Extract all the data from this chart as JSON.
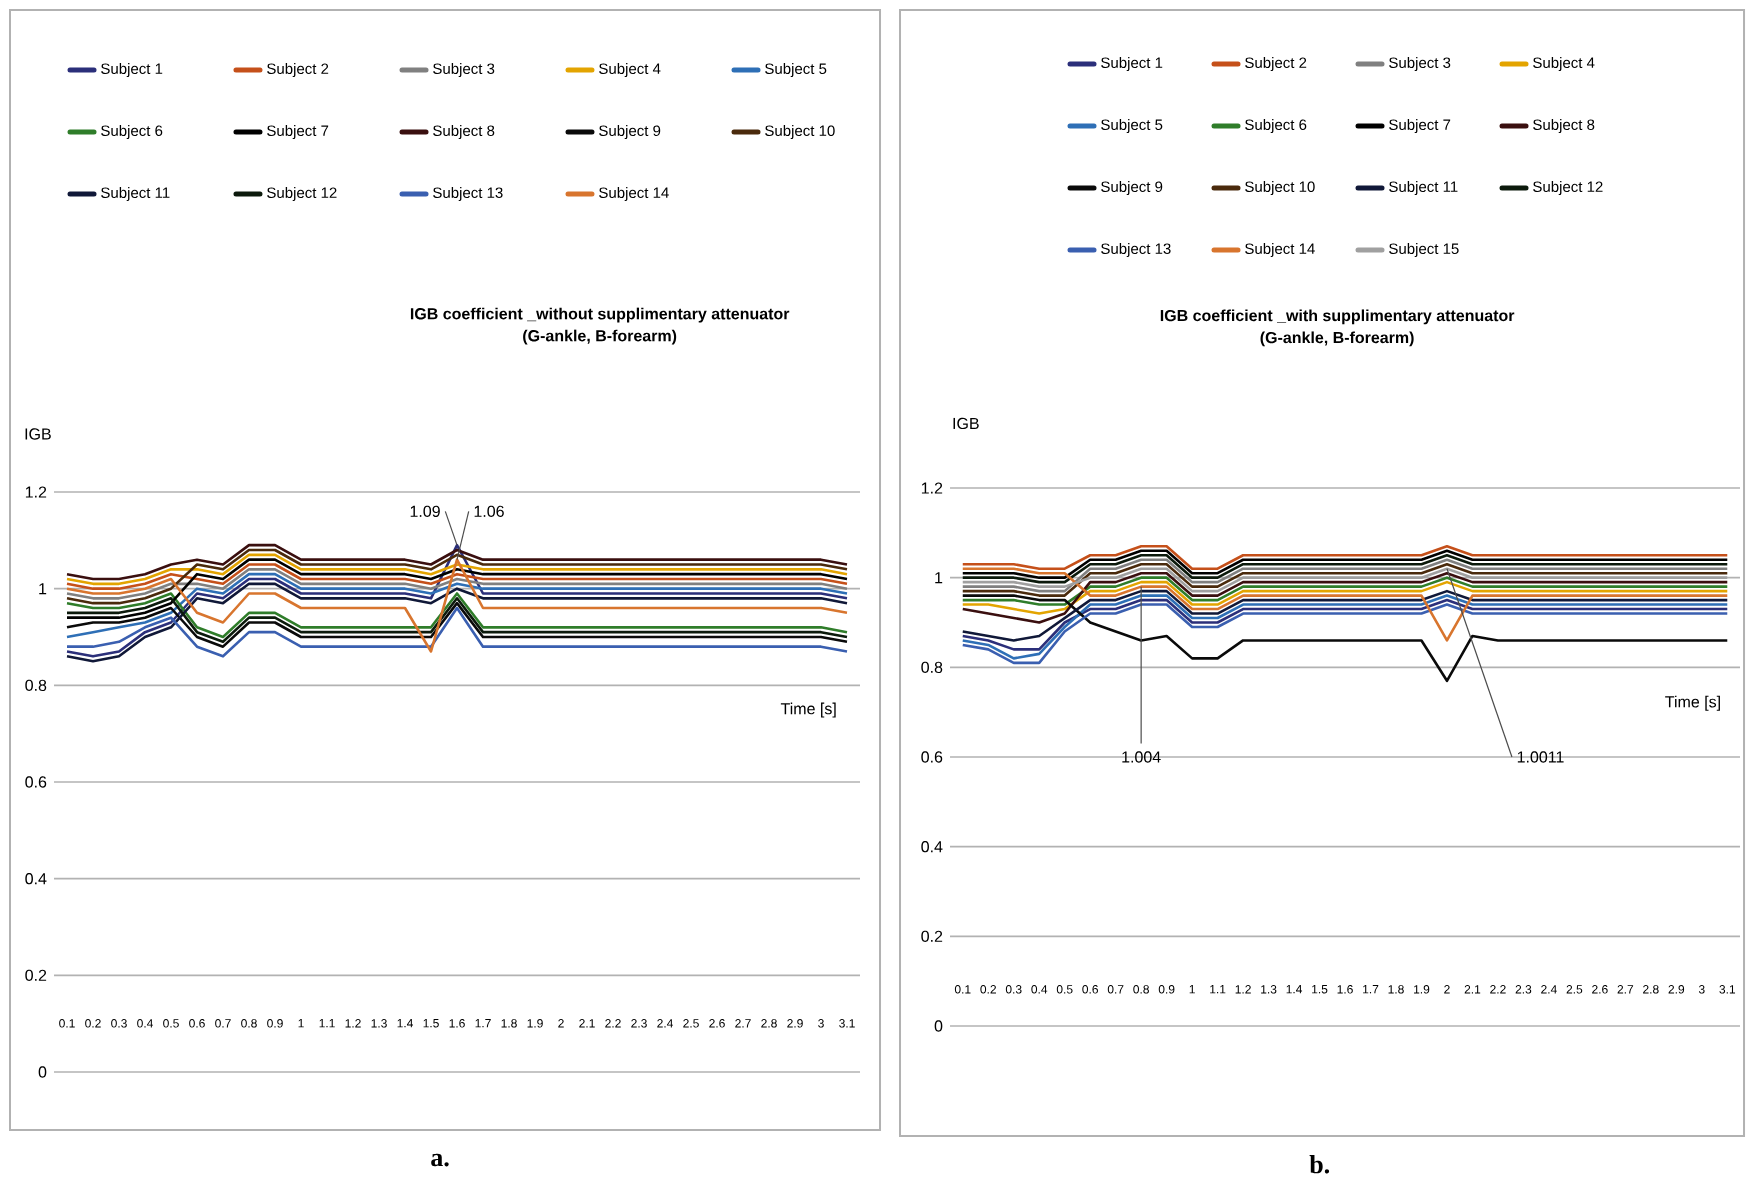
{
  "chart_data": [
    {
      "type": "line",
      "title": "IGB coefficient _without supplimentary attenuator",
      "subtitle": "(G-ankle, B-forearm)",
      "xlabel": "Time [s]",
      "ylabel": "IGB",
      "categories": [
        "0.1",
        "0.2",
        "0.3",
        "0.4",
        "0.5",
        "0.6",
        "0.7",
        "0.8",
        "0.9",
        "1",
        "1.1",
        "1.2",
        "1.3",
        "1.4",
        "1.5",
        "1.6",
        "1.7",
        "1.8",
        "1.9",
        "2",
        "2.1",
        "2.2",
        "2.3",
        "2.4",
        "2.5",
        "2.6",
        "2.7",
        "2.8",
        "2.9",
        "3",
        "3.1"
      ],
      "ylim": [
        0,
        1.2
      ],
      "yticks": [
        0,
        0.2,
        0.4,
        0.6,
        0.8,
        1,
        1.2
      ],
      "grid": "y",
      "legend": "top",
      "annotations": [
        {
          "text": "1.09",
          "x": "1.6",
          "y": 1.09
        },
        {
          "text": "1.06",
          "x": "1.6",
          "y": 1.06
        },
        "a."
      ],
      "series": [
        {
          "name": "Subject 1",
          "color": "#2b2f7a",
          "values": [
            0.87,
            0.86,
            0.87,
            0.91,
            0.93,
            0.99,
            0.98,
            1.02,
            1.02,
            0.99,
            0.99,
            0.99,
            0.99,
            0.99,
            0.98,
            1.09,
            0.99,
            0.99,
            0.99,
            0.99,
            0.99,
            0.99,
            0.99,
            0.99,
            0.99,
            0.99,
            0.99,
            0.99,
            0.99,
            0.99,
            0.98
          ]
        },
        {
          "name": "Subject 2",
          "color": "#c5501a",
          "values": [
            1.01,
            1.0,
            1.0,
            1.01,
            1.03,
            1.02,
            1.01,
            1.05,
            1.05,
            1.02,
            1.02,
            1.02,
            1.02,
            1.02,
            1.01,
            1.03,
            1.02,
            1.02,
            1.02,
            1.02,
            1.02,
            1.02,
            1.02,
            1.02,
            1.02,
            1.02,
            1.02,
            1.02,
            1.02,
            1.02,
            1.01
          ]
        },
        {
          "name": "Subject 3",
          "color": "#808080",
          "values": [
            0.99,
            0.98,
            0.98,
            0.99,
            1.01,
            1.01,
            1.0,
            1.04,
            1.04,
            1.01,
            1.01,
            1.01,
            1.01,
            1.01,
            1.0,
            1.02,
            1.01,
            1.01,
            1.01,
            1.01,
            1.01,
            1.01,
            1.01,
            1.01,
            1.01,
            1.01,
            1.01,
            1.01,
            1.01,
            1.01,
            1.0
          ]
        },
        {
          "name": "Subject 4",
          "color": "#e3a400",
          "values": [
            1.02,
            1.01,
            1.01,
            1.02,
            1.04,
            1.04,
            1.03,
            1.07,
            1.07,
            1.04,
            1.04,
            1.04,
            1.04,
            1.04,
            1.03,
            1.05,
            1.04,
            1.04,
            1.04,
            1.04,
            1.04,
            1.04,
            1.04,
            1.04,
            1.04,
            1.04,
            1.04,
            1.04,
            1.04,
            1.04,
            1.03
          ]
        },
        {
          "name": "Subject 5",
          "color": "#2e6fb6",
          "values": [
            0.9,
            0.91,
            0.92,
            0.93,
            0.95,
            1.0,
            0.99,
            1.03,
            1.03,
            1.0,
            1.0,
            1.0,
            1.0,
            1.0,
            0.99,
            1.01,
            1.0,
            1.0,
            1.0,
            1.0,
            1.0,
            1.0,
            1.0,
            1.0,
            1.0,
            1.0,
            1.0,
            1.0,
            1.0,
            1.0,
            0.99
          ]
        },
        {
          "name": "Subject 6",
          "color": "#2f7d2a",
          "values": [
            0.97,
            0.96,
            0.96,
            0.97,
            0.99,
            0.92,
            0.9,
            0.95,
            0.95,
            0.92,
            0.92,
            0.92,
            0.92,
            0.92,
            0.92,
            0.99,
            0.92,
            0.92,
            0.92,
            0.92,
            0.92,
            0.92,
            0.92,
            0.92,
            0.92,
            0.92,
            0.92,
            0.92,
            0.92,
            0.92,
            0.91
          ]
        },
        {
          "name": "Subject 7",
          "color": "#000000",
          "values": [
            0.94,
            0.94,
            0.94,
            0.95,
            0.97,
            1.03,
            1.02,
            1.06,
            1.06,
            1.03,
            1.03,
            1.03,
            1.03,
            1.03,
            1.02,
            1.04,
            1.03,
            1.03,
            1.03,
            1.03,
            1.03,
            1.03,
            1.03,
            1.03,
            1.03,
            1.03,
            1.03,
            1.03,
            1.03,
            1.03,
            1.02
          ]
        },
        {
          "name": "Subject 8",
          "color": "#3a0f0f",
          "values": [
            1.03,
            1.02,
            1.02,
            1.03,
            1.05,
            1.06,
            1.05,
            1.09,
            1.09,
            1.06,
            1.06,
            1.06,
            1.06,
            1.06,
            1.05,
            1.08,
            1.06,
            1.06,
            1.06,
            1.06,
            1.06,
            1.06,
            1.06,
            1.06,
            1.06,
            1.06,
            1.06,
            1.06,
            1.06,
            1.06,
            1.05
          ]
        },
        {
          "name": "Subject 9",
          "color": "#0a0a0a",
          "values": [
            0.92,
            0.93,
            0.93,
            0.94,
            0.96,
            0.9,
            0.88,
            0.93,
            0.93,
            0.9,
            0.9,
            0.9,
            0.9,
            0.9,
            0.9,
            0.97,
            0.9,
            0.9,
            0.9,
            0.9,
            0.9,
            0.9,
            0.9,
            0.9,
            0.9,
            0.9,
            0.9,
            0.9,
            0.9,
            0.9,
            0.89
          ]
        },
        {
          "name": "Subject 10",
          "color": "#4a2a0c",
          "values": [
            0.98,
            0.97,
            0.97,
            0.98,
            1.0,
            1.05,
            1.04,
            1.08,
            1.08,
            1.05,
            1.05,
            1.05,
            1.05,
            1.05,
            1.04,
            1.07,
            1.05,
            1.05,
            1.05,
            1.05,
            1.05,
            1.05,
            1.05,
            1.05,
            1.05,
            1.05,
            1.05,
            1.05,
            1.05,
            1.05,
            1.04
          ]
        },
        {
          "name": "Subject 11",
          "color": "#101838",
          "values": [
            0.86,
            0.85,
            0.86,
            0.9,
            0.92,
            0.98,
            0.97,
            1.01,
            1.01,
            0.98,
            0.98,
            0.98,
            0.98,
            0.98,
            0.97,
            1.0,
            0.98,
            0.98,
            0.98,
            0.98,
            0.98,
            0.98,
            0.98,
            0.98,
            0.98,
            0.98,
            0.98,
            0.98,
            0.98,
            0.98,
            0.97
          ]
        },
        {
          "name": "Subject 12",
          "color": "#0c1a0c",
          "values": [
            0.95,
            0.95,
            0.95,
            0.96,
            0.98,
            0.91,
            0.89,
            0.94,
            0.94,
            0.91,
            0.91,
            0.91,
            0.91,
            0.91,
            0.91,
            0.98,
            0.91,
            0.91,
            0.91,
            0.91,
            0.91,
            0.91,
            0.91,
            0.91,
            0.91,
            0.91,
            0.91,
            0.91,
            0.91,
            0.91,
            0.9
          ]
        },
        {
          "name": "Subject 13",
          "color": "#3a5fb0",
          "values": [
            0.88,
            0.88,
            0.89,
            0.92,
            0.94,
            0.88,
            0.86,
            0.91,
            0.91,
            0.88,
            0.88,
            0.88,
            0.88,
            0.88,
            0.88,
            0.96,
            0.88,
            0.88,
            0.88,
            0.88,
            0.88,
            0.88,
            0.88,
            0.88,
            0.88,
            0.88,
            0.88,
            0.88,
            0.88,
            0.88,
            0.87
          ]
        },
        {
          "name": "Subject 14",
          "color": "#d8752e",
          "values": [
            1.0,
            0.99,
            0.99,
            1.0,
            1.02,
            0.95,
            0.93,
            0.99,
            0.99,
            0.96,
            0.96,
            0.96,
            0.96,
            0.96,
            0.87,
            1.06,
            0.96,
            0.96,
            0.96,
            0.96,
            0.96,
            0.96,
            0.96,
            0.96,
            0.96,
            0.96,
            0.96,
            0.96,
            0.96,
            0.96,
            0.95
          ]
        }
      ]
    },
    {
      "type": "line",
      "title": "IGB coefficient _with supplimentary attenuator",
      "subtitle": "(G-ankle, B-forearm)",
      "xlabel": "Time [s]",
      "ylabel": "IGB",
      "categories": [
        "0.1",
        "0.2",
        "0.3",
        "0.4",
        "0.5",
        "0.6",
        "0.7",
        "0.8",
        "0.9",
        "1",
        "1.1",
        "1.2",
        "1.3",
        "1.4",
        "1.5",
        "1.6",
        "1.7",
        "1.8",
        "1.9",
        "2",
        "2.1",
        "2.2",
        "2.3",
        "2.4",
        "2.5",
        "2.6",
        "2.7",
        "2.8",
        "2.9",
        "3",
        "3.1"
      ],
      "ylim": [
        0,
        1.2
      ],
      "yticks": [
        0,
        0.2,
        0.4,
        0.6,
        0.8,
        1,
        1.2
      ],
      "grid": "y",
      "legend": "top",
      "annotations": [
        {
          "text": "1.004",
          "x": "0.8",
          "y": 0.98
        },
        {
          "text": "1.0011",
          "x": "2",
          "y": 1.02
        },
        "b."
      ],
      "series": [
        {
          "name": "Subject 1",
          "color": "#2b2f7a",
          "values": [
            0.87,
            0.86,
            0.84,
            0.84,
            0.9,
            0.93,
            0.93,
            0.95,
            0.95,
            0.9,
            0.9,
            0.93,
            0.93,
            0.93,
            0.93,
            0.93,
            0.93,
            0.93,
            0.93,
            0.95,
            0.93,
            0.93,
            0.93,
            0.93,
            0.93,
            0.93,
            0.93,
            0.93,
            0.93,
            0.93,
            0.93
          ]
        },
        {
          "name": "Subject 2",
          "color": "#c5501a",
          "values": [
            1.03,
            1.03,
            1.03,
            1.02,
            1.02,
            1.05,
            1.05,
            1.07,
            1.07,
            1.02,
            1.02,
            1.05,
            1.05,
            1.05,
            1.05,
            1.05,
            1.05,
            1.05,
            1.05,
            1.07,
            1.05,
            1.05,
            1.05,
            1.05,
            1.05,
            1.05,
            1.05,
            1.05,
            1.05,
            1.05,
            1.05
          ]
        },
        {
          "name": "Subject 3",
          "color": "#808080",
          "values": [
            0.98,
            0.98,
            0.98,
            0.97,
            0.97,
            1.02,
            1.02,
            1.04,
            1.04,
            0.99,
            0.99,
            1.02,
            1.02,
            1.02,
            1.02,
            1.02,
            1.02,
            1.02,
            1.02,
            1.04,
            1.02,
            1.02,
            1.02,
            1.02,
            1.02,
            1.02,
            1.02,
            1.02,
            1.02,
            1.02,
            1.02
          ]
        },
        {
          "name": "Subject 4",
          "color": "#e3a400",
          "values": [
            0.94,
            0.94,
            0.93,
            0.92,
            0.93,
            0.97,
            0.97,
            0.99,
            0.99,
            0.94,
            0.94,
            0.97,
            0.97,
            0.97,
            0.97,
            0.97,
            0.97,
            0.97,
            0.97,
            0.99,
            0.97,
            0.97,
            0.97,
            0.97,
            0.97,
            0.97,
            0.97,
            0.97,
            0.97,
            0.97,
            0.97
          ]
        },
        {
          "name": "Subject 5",
          "color": "#2e6fb6",
          "values": [
            0.86,
            0.85,
            0.82,
            0.83,
            0.89,
            0.94,
            0.94,
            0.96,
            0.96,
            0.91,
            0.91,
            0.94,
            0.94,
            0.94,
            0.94,
            0.94,
            0.94,
            0.94,
            0.94,
            0.96,
            0.94,
            0.94,
            0.94,
            0.94,
            0.94,
            0.94,
            0.94,
            0.94,
            0.94,
            0.94,
            0.94
          ]
        },
        {
          "name": "Subject 6",
          "color": "#2f7d2a",
          "values": [
            0.95,
            0.95,
            0.95,
            0.94,
            0.94,
            0.98,
            0.98,
            1.0,
            1.0,
            0.95,
            0.95,
            0.98,
            0.98,
            0.98,
            0.98,
            0.98,
            0.98,
            0.98,
            0.98,
            1.0,
            0.98,
            0.98,
            0.98,
            0.98,
            0.98,
            0.98,
            0.98,
            0.98,
            0.98,
            0.98,
            0.98
          ]
        },
        {
          "name": "Subject 7",
          "color": "#000000",
          "values": [
            1.01,
            1.01,
            1.01,
            1.0,
            1.0,
            1.04,
            1.04,
            1.06,
            1.06,
            1.01,
            1.01,
            1.04,
            1.04,
            1.04,
            1.04,
            1.04,
            1.04,
            1.04,
            1.04,
            1.06,
            1.04,
            1.04,
            1.04,
            1.04,
            1.04,
            1.04,
            1.04,
            1.04,
            1.04,
            1.04,
            1.04
          ]
        },
        {
          "name": "Subject 8",
          "color": "#3a0f0f",
          "values": [
            0.93,
            0.92,
            0.91,
            0.9,
            0.92,
            0.99,
            0.99,
            1.01,
            1.01,
            0.96,
            0.96,
            0.99,
            0.99,
            0.99,
            0.99,
            0.99,
            0.99,
            0.99,
            0.99,
            1.01,
            0.99,
            0.99,
            0.99,
            0.99,
            0.99,
            0.99,
            0.99,
            0.99,
            0.99,
            0.99,
            0.99
          ]
        },
        {
          "name": "Subject 9",
          "color": "#0a0a0a",
          "values": [
            0.96,
            0.96,
            0.96,
            0.95,
            0.95,
            0.9,
            0.88,
            0.86,
            0.87,
            0.82,
            0.82,
            0.86,
            0.86,
            0.86,
            0.86,
            0.86,
            0.86,
            0.86,
            0.86,
            0.77,
            0.87,
            0.86,
            0.86,
            0.86,
            0.86,
            0.86,
            0.86,
            0.86,
            0.86,
            0.86,
            0.86
          ]
        },
        {
          "name": "Subject 10",
          "color": "#4a2a0c",
          "values": [
            0.97,
            0.97,
            0.97,
            0.96,
            0.96,
            1.01,
            1.01,
            1.03,
            1.03,
            0.98,
            0.98,
            1.01,
            1.01,
            1.01,
            1.01,
            1.01,
            1.01,
            1.01,
            1.01,
            1.03,
            1.01,
            1.01,
            1.01,
            1.01,
            1.01,
            1.01,
            1.01,
            1.01,
            1.01,
            1.01,
            1.01
          ]
        },
        {
          "name": "Subject 11",
          "color": "#101838",
          "values": [
            0.88,
            0.87,
            0.86,
            0.87,
            0.91,
            0.95,
            0.95,
            0.97,
            0.97,
            0.92,
            0.92,
            0.95,
            0.95,
            0.95,
            0.95,
            0.95,
            0.95,
            0.95,
            0.95,
            0.97,
            0.95,
            0.95,
            0.95,
            0.95,
            0.95,
            0.95,
            0.95,
            0.95,
            0.95,
            0.95,
            0.95
          ]
        },
        {
          "name": "Subject 12",
          "color": "#0c1a0c",
          "values": [
            1.0,
            1.0,
            1.0,
            0.99,
            0.99,
            1.03,
            1.03,
            1.05,
            1.05,
            1.0,
            1.0,
            1.03,
            1.03,
            1.03,
            1.03,
            1.03,
            1.03,
            1.03,
            1.03,
            1.05,
            1.03,
            1.03,
            1.03,
            1.03,
            1.03,
            1.03,
            1.03,
            1.03,
            1.03,
            1.03,
            1.03
          ]
        },
        {
          "name": "Subject 13",
          "color": "#3a5fb0",
          "values": [
            0.85,
            0.84,
            0.81,
            0.81,
            0.88,
            0.92,
            0.92,
            0.94,
            0.94,
            0.89,
            0.89,
            0.92,
            0.92,
            0.92,
            0.92,
            0.92,
            0.92,
            0.92,
            0.92,
            0.94,
            0.92,
            0.92,
            0.92,
            0.92,
            0.92,
            0.92,
            0.92,
            0.92,
            0.92,
            0.92,
            0.92
          ]
        },
        {
          "name": "Subject 14",
          "color": "#d8752e",
          "values": [
            1.02,
            1.02,
            1.02,
            1.01,
            1.01,
            0.96,
            0.96,
            0.98,
            0.98,
            0.93,
            0.93,
            0.96,
            0.96,
            0.96,
            0.96,
            0.96,
            0.96,
            0.96,
            0.96,
            0.86,
            0.96,
            0.96,
            0.96,
            0.96,
            0.96,
            0.96,
            0.96,
            0.96,
            0.96,
            0.96,
            0.96
          ]
        },
        {
          "name": "Subject 15",
          "color": "#a0a0a0",
          "values": [
            0.99,
            0.99,
            0.99,
            0.98,
            0.98,
            1.0,
            1.0,
            1.02,
            1.02,
            0.97,
            0.97,
            1.0,
            1.0,
            1.0,
            1.0,
            1.0,
            1.0,
            1.0,
            1.0,
            1.02,
            1.0,
            1.0,
            1.0,
            1.0,
            1.0,
            1.0,
            1.0,
            1.0,
            1.0,
            1.0,
            1.0
          ]
        }
      ]
    }
  ]
}
